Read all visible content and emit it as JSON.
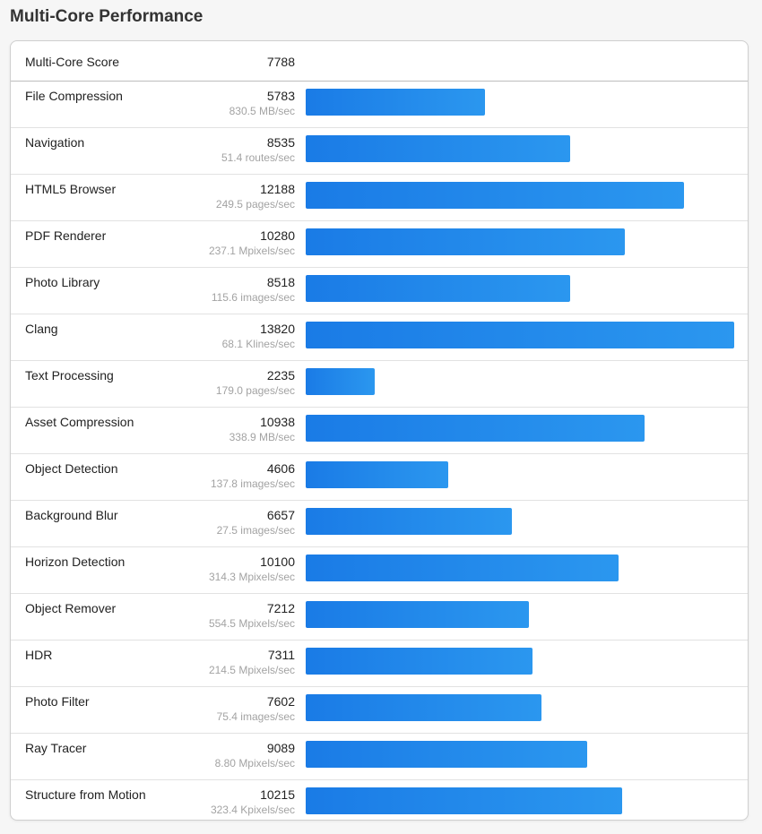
{
  "page_title": "Multi-Core Performance",
  "colors": {
    "bar_start": "#1a7be6",
    "bar_end": "#2b97ef",
    "rate_text": "#a3a3a3"
  },
  "summary": {
    "label": "Multi-Core Score",
    "score": "7788"
  },
  "chart_data": {
    "type": "bar",
    "orientation": "horizontal",
    "title": "Multi-Core Performance",
    "xlim": [
      0,
      13820
    ],
    "categories": [
      "File Compression",
      "Navigation",
      "HTML5 Browser",
      "PDF Renderer",
      "Photo Library",
      "Clang",
      "Text Processing",
      "Asset Compression",
      "Object Detection",
      "Background Blur",
      "Horizon Detection",
      "Object Remover",
      "HDR",
      "Photo Filter",
      "Ray Tracer",
      "Structure from Motion"
    ],
    "values": [
      5783,
      8535,
      12188,
      10280,
      8518,
      13820,
      2235,
      10938,
      4606,
      6657,
      10100,
      7212,
      7311,
      7602,
      9089,
      10215
    ],
    "rates": [
      "830.5 MB/sec",
      "51.4 routes/sec",
      "249.5 pages/sec",
      "237.1 Mpixels/sec",
      "115.6 images/sec",
      "68.1 Klines/sec",
      "179.0 pages/sec",
      "338.9 MB/sec",
      "137.8 images/sec",
      "27.5 images/sec",
      "314.3 Mpixels/sec",
      "554.5 Mpixels/sec",
      "214.5 Mpixels/sec",
      "75.4 images/sec",
      "8.80 Mpixels/sec",
      "323.4 Kpixels/sec"
    ]
  }
}
